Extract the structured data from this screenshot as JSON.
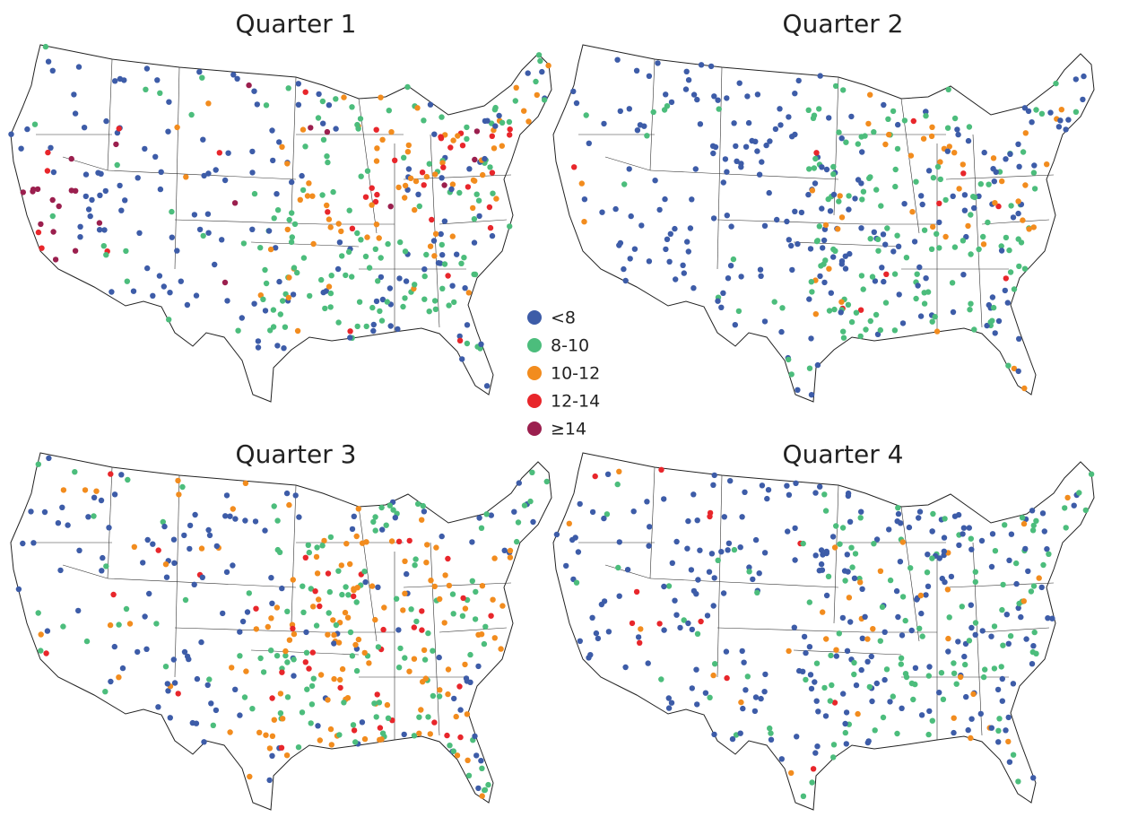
{
  "panels": [
    {
      "title": "Quarter 1"
    },
    {
      "title": "Quarter 2"
    },
    {
      "title": "Quarter 3"
    },
    {
      "title": "Quarter 4"
    }
  ],
  "legend": {
    "items": [
      {
        "label": "<8",
        "color": "#3d5ca8"
      },
      {
        "label": "8-10",
        "color": "#4cbd7c"
      },
      {
        "label": "10-12",
        "color": "#f28c1e"
      },
      {
        "label": "12-14",
        "color": "#e8262b"
      },
      {
        "label": "≥14",
        "color": "#9b1f4e"
      }
    ]
  }
}
